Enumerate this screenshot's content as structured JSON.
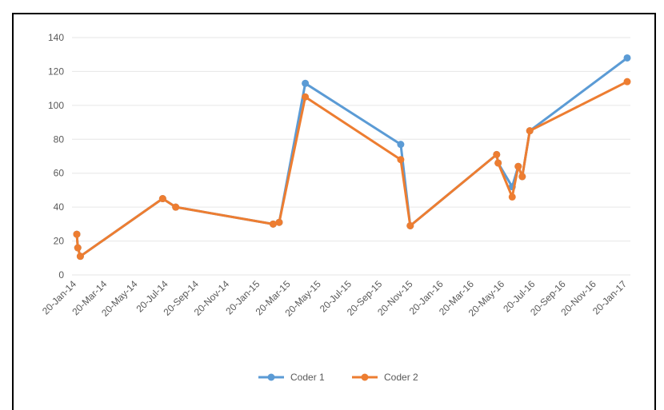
{
  "chart_data": {
    "type": "line",
    "title": "",
    "xlabel": "",
    "ylabel": "",
    "ylim": [
      0,
      140
    ],
    "y_ticks": [
      0,
      20,
      40,
      60,
      80,
      100,
      120,
      140
    ],
    "x_tick_labels": [
      "20-Jan-14",
      "20-Mar-14",
      "20-May-14",
      "20-Jul-14",
      "20-Sep-14",
      "20-Nov-14",
      "20-Jan-15",
      "20-Mar-15",
      "20-May-15",
      "20-Jul-15",
      "20-Sep-15",
      "20-Nov-15",
      "20-Jan-16",
      "20-Mar-16",
      "20-May-16",
      "20-Jul-16",
      "20-Sep-16",
      "20-Nov-16",
      "20-Jan-17"
    ],
    "grid": "horizontal",
    "legend_position": "bottom",
    "series": [
      {
        "name": "Coder 1",
        "color": "#5B9BD5",
        "points": [
          {
            "x": "2014-01-20",
            "y": 24
          },
          {
            "x": "2014-01-22",
            "y": 16
          },
          {
            "x": "2014-01-27",
            "y": 11
          },
          {
            "x": "2014-07-10",
            "y": 45
          },
          {
            "x": "2014-08-05",
            "y": 40
          },
          {
            "x": "2015-02-15",
            "y": 30
          },
          {
            "x": "2015-02-27",
            "y": 31
          },
          {
            "x": "2015-04-20",
            "y": 113
          },
          {
            "x": "2015-10-27",
            "y": 77
          },
          {
            "x": "2015-11-15",
            "y": 29
          },
          {
            "x": "2016-05-05",
            "y": 71
          },
          {
            "x": "2016-05-08",
            "y": 66
          },
          {
            "x": "2016-06-05",
            "y": 52
          },
          {
            "x": "2016-06-17",
            "y": 64
          },
          {
            "x": "2016-06-25",
            "y": 58
          },
          {
            "x": "2016-07-10",
            "y": 85
          },
          {
            "x": "2017-01-20",
            "y": 128
          }
        ]
      },
      {
        "name": "Coder 2",
        "color": "#ED7D31",
        "points": [
          {
            "x": "2014-01-20",
            "y": 24
          },
          {
            "x": "2014-01-22",
            "y": 16
          },
          {
            "x": "2014-01-27",
            "y": 11
          },
          {
            "x": "2014-07-10",
            "y": 45
          },
          {
            "x": "2014-08-05",
            "y": 40
          },
          {
            "x": "2015-02-15",
            "y": 30
          },
          {
            "x": "2015-02-27",
            "y": 31
          },
          {
            "x": "2015-04-20",
            "y": 105
          },
          {
            "x": "2015-10-27",
            "y": 68
          },
          {
            "x": "2015-11-15",
            "y": 29
          },
          {
            "x": "2016-05-05",
            "y": 71
          },
          {
            "x": "2016-05-08",
            "y": 66
          },
          {
            "x": "2016-06-05",
            "y": 46
          },
          {
            "x": "2016-06-17",
            "y": 64
          },
          {
            "x": "2016-06-25",
            "y": 58
          },
          {
            "x": "2016-07-10",
            "y": 85
          },
          {
            "x": "2017-01-20",
            "y": 114
          }
        ]
      }
    ]
  },
  "colors": {
    "gridline": "#E6E6E6",
    "axis_text": "#595959",
    "frame_border": "#000000"
  }
}
